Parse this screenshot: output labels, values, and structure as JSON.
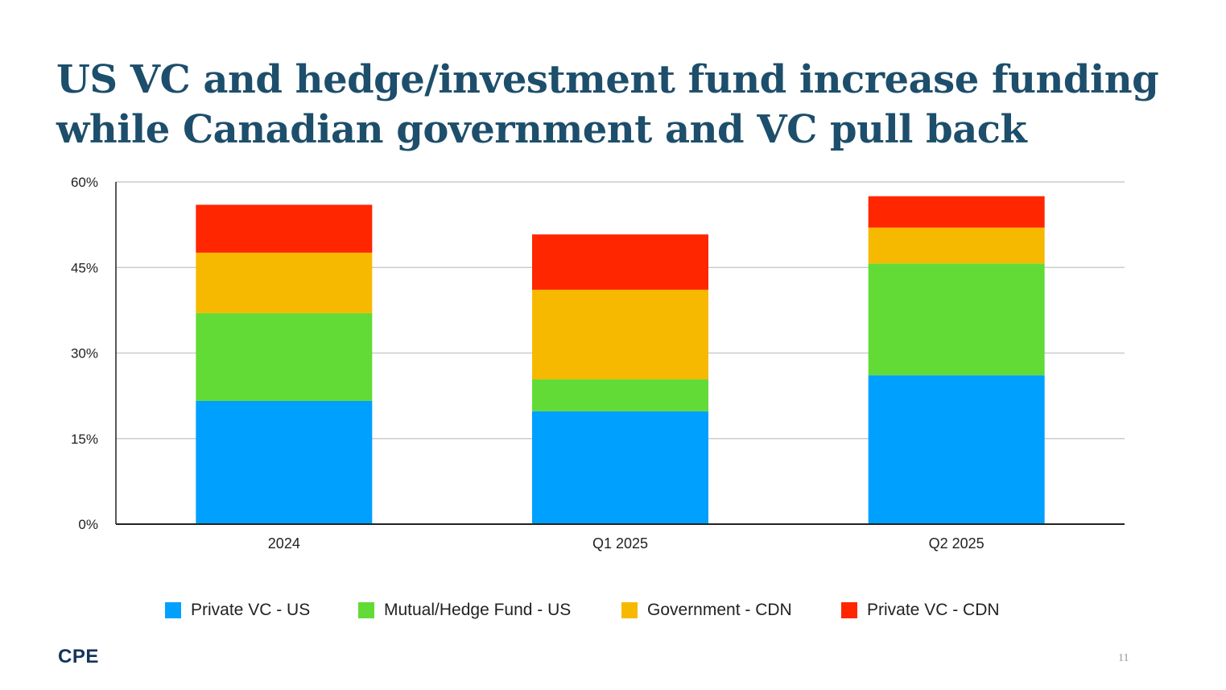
{
  "title": "US VC and hedge/investment fund increase funding while Canadian government and VC pull back",
  "logo": "CPE",
  "page_number": "11",
  "chart_data": {
    "type": "bar",
    "stacked": true,
    "categories": [
      "2024",
      "Q1 2025",
      "Q2 2025"
    ],
    "series": [
      {
        "name": "Private VC - US",
        "color": "#00a0ff",
        "values": [
          21.6,
          19.8,
          26.1
        ]
      },
      {
        "name": "Mutual/Hedge Fund - US",
        "color": "#62db37",
        "values": [
          15.4,
          5.6,
          19.6
        ]
      },
      {
        "name": "Government - CDN",
        "color": "#f7b900",
        "values": [
          10.6,
          15.7,
          6.3
        ]
      },
      {
        "name": "Private VC - CDN",
        "color": "#ff2600",
        "values": [
          8.4,
          9.7,
          5.5
        ]
      }
    ],
    "ylim": [
      0,
      60
    ],
    "yticks": [
      "0%",
      "15%",
      "30%",
      "45%",
      "60%"
    ],
    "ytick_values": [
      0,
      15,
      30,
      45,
      60
    ],
    "grid": true,
    "legend_position": "bottom"
  }
}
